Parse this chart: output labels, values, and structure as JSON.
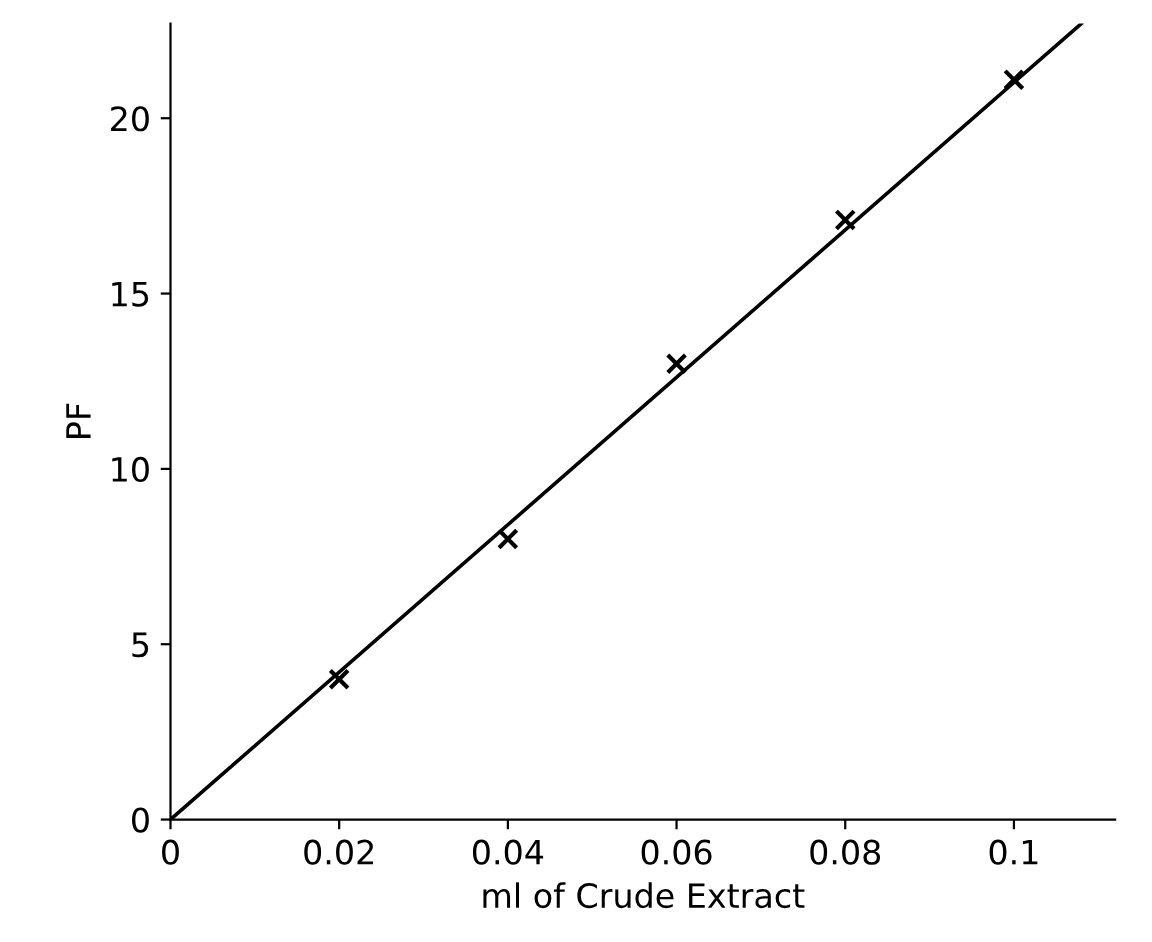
{
  "chart_data": {
    "type": "scatter",
    "xlabel": "ml of Crude Extract",
    "ylabel": "PF",
    "series": [
      {
        "type": "scatter",
        "color": "#000000",
        "marker": "cross",
        "x": [
          0.02,
          0.04,
          0.06,
          0.08,
          0.1
        ],
        "values": [
          4.0,
          8.0,
          13.0,
          17.1,
          21.1
        ]
      },
      {
        "type": "line",
        "color": "#000000",
        "marker": "none",
        "x": [
          0,
          0.108
        ],
        "values": [
          0,
          22.7
        ]
      }
    ],
    "xlim": [
      0,
      0.112
    ],
    "ylim": [
      0,
      22.7
    ],
    "xticks": [
      0,
      0.02,
      0.04,
      0.06,
      0.08,
      0.1
    ],
    "yticks": [
      0,
      5,
      10,
      15,
      20
    ],
    "grid": false,
    "legend": false
  }
}
